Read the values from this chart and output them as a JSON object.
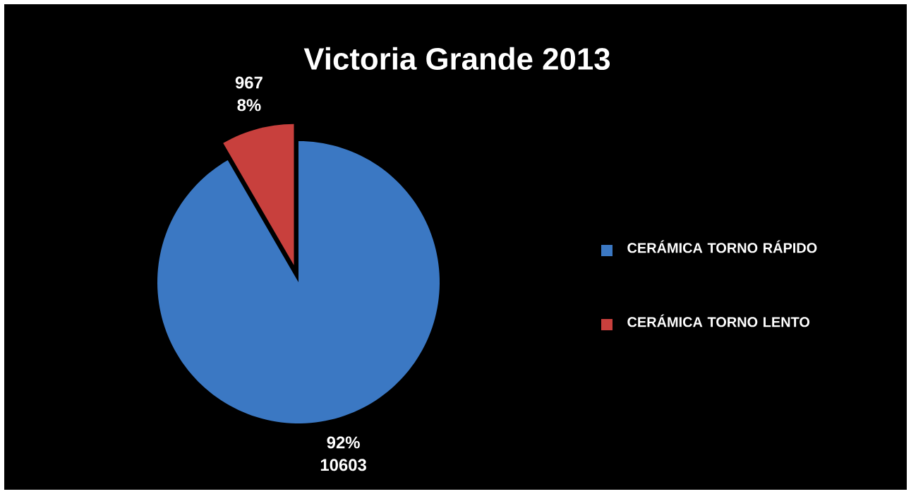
{
  "chart_data": {
    "type": "pie",
    "title": "Victoria Grande 2013",
    "categories": [
      "CERÁMICA TORNO RÁPIDO",
      "CERÁMICA TORNO LENTO"
    ],
    "values": [
      10603,
      967
    ],
    "colors": [
      "#3b78c3",
      "#c8403d"
    ],
    "value_labels": [
      "10603",
      "967"
    ],
    "annotations": [
      "92%",
      "8%"
    ],
    "legend": "right"
  }
}
